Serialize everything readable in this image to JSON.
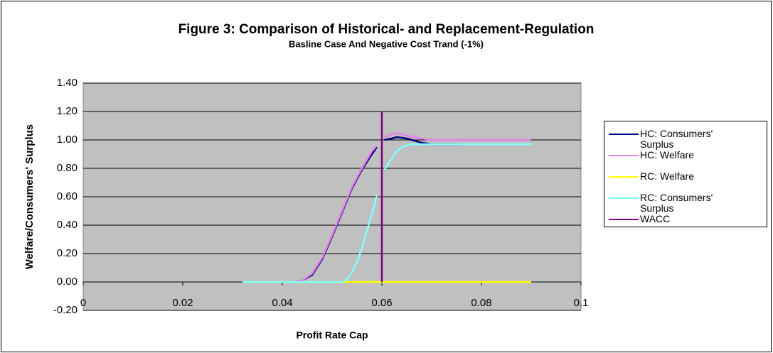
{
  "chart_data": {
    "type": "line",
    "title": "Figure 3: Comparison of Historical- and Replacement-Regulation",
    "subtitle": "Basline Case And Negative Cost Trand (-1%)",
    "x_label": "Profit Rate Cap",
    "y_label": "Welfare/Consumers' Surplus",
    "xlim": [
      0,
      0.1
    ],
    "xticks": [
      0,
      0.02,
      0.04,
      0.06,
      0.08,
      0.1
    ],
    "ylim": [
      -0.2,
      1.4
    ],
    "yticks": [
      {
        "value": -0.2,
        "label": "-0.20"
      },
      {
        "value": 0,
        "label": "0.00"
      },
      {
        "value": 0.2,
        "label": "0.20"
      },
      {
        "value": 0.4,
        "label": "0.40"
      },
      {
        "value": 0.6,
        "label": "0.60"
      },
      {
        "value": 0.8,
        "label": "0.80"
      },
      {
        "value": 1.0,
        "label": "1.00"
      },
      {
        "value": 1.2,
        "label": "1.20"
      },
      {
        "value": 1.4,
        "label": "1.40"
      }
    ],
    "grid": true,
    "legend": "right",
    "series": [
      {
        "name": "HC: Consumers' Surplus",
        "color": "#000080",
        "x": [
          0.032,
          0.036,
          0.04,
          0.042,
          0.044,
          0.046,
          0.048,
          0.05,
          0.052,
          0.054,
          0.056,
          0.058,
          0.059,
          0.06,
          0.0605,
          0.062,
          0.063,
          0.065,
          0.068,
          0.07,
          0.076
        ],
        "values": [
          0,
          0,
          0,
          0,
          0.01,
          0.05,
          0.16,
          0.32,
          0.49,
          0.66,
          0.79,
          0.9,
          0.95,
          null,
          1.0,
          1.01,
          1.02,
          1.01,
          0.98,
          0.97,
          0.97
        ]
      },
      {
        "name": "HC: Welfare",
        "color": "#e67ee6",
        "x": [
          0.032,
          0.036,
          0.04,
          0.042,
          0.044,
          0.046,
          0.048,
          0.05,
          0.052,
          0.054,
          0.056,
          0.058,
          0.059,
          0.06,
          0.0605,
          0.062,
          0.063,
          0.065,
          0.068,
          0.07,
          0.075,
          0.08,
          0.09
        ],
        "values": [
          0,
          0,
          0,
          0,
          0.01,
          0.06,
          0.17,
          0.33,
          0.5,
          0.67,
          0.8,
          0.92,
          0.96,
          null,
          1.02,
          1.04,
          1.05,
          1.03,
          1.01,
          1.0,
          1.0,
          1.0,
          1.0
        ]
      },
      {
        "name": "RC: Welfare",
        "color": "#ffff00",
        "x": [
          0.032,
          0.09
        ],
        "values": [
          0,
          0
        ]
      },
      {
        "name": "RC: Consumers' Surplus",
        "color": "#80ffff",
        "x": [
          0.032,
          0.052,
          0.053,
          0.054,
          0.055,
          0.056,
          0.057,
          0.058,
          0.059,
          0.06,
          0.0605,
          0.062,
          0.063,
          0.064,
          0.066,
          0.07,
          0.09
        ],
        "values": [
          0,
          0,
          0.02,
          0.07,
          0.14,
          0.24,
          0.36,
          0.48,
          0.61,
          null,
          0.79,
          0.87,
          0.92,
          0.95,
          0.97,
          0.97,
          0.97
        ]
      },
      {
        "name": "WACC",
        "color": "#800080",
        "x": [
          0.06,
          0.06
        ],
        "values": [
          0,
          1.2
        ]
      }
    ]
  }
}
